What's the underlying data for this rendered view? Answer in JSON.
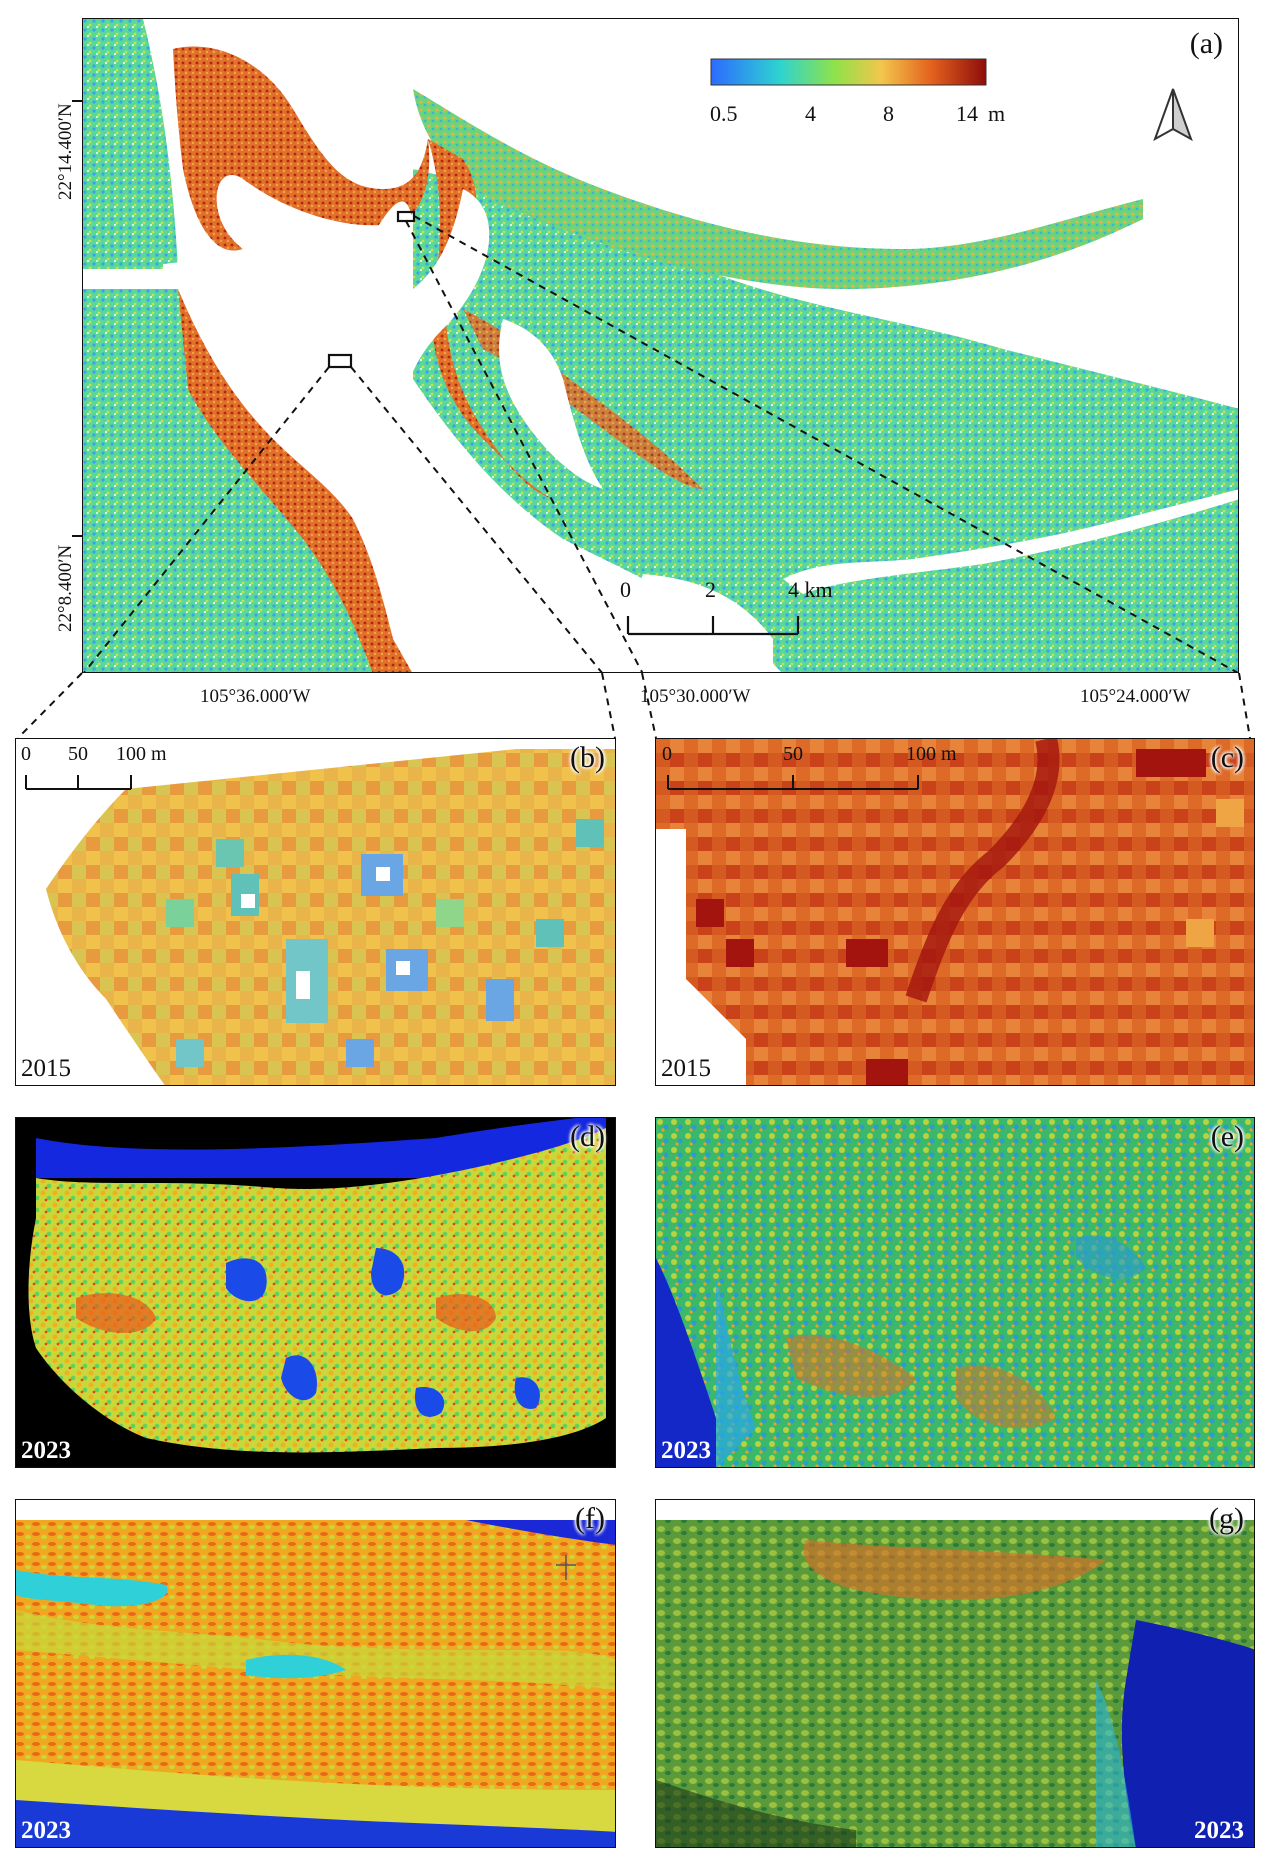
{
  "colorbar": {
    "ticks": [
      "0.5",
      "4",
      "8",
      "14"
    ],
    "unit": "m",
    "colors": [
      "#2c7bff",
      "#2ed3d0",
      "#8fe24a",
      "#f0c24a",
      "#e86a20",
      "#a3140e"
    ]
  },
  "panels": {
    "a": {
      "label": "(a)"
    },
    "b": {
      "label": "(b)",
      "year": "2015"
    },
    "c": {
      "label": "(c)",
      "year": "2015"
    },
    "d": {
      "label": "(d)",
      "year": "2023"
    },
    "e": {
      "label": "(e)",
      "year": "2023"
    },
    "f": {
      "label": "(f)",
      "year": "2023"
    },
    "g": {
      "label": "(g)",
      "year": "2023"
    }
  },
  "lat_labels": [
    "22°14.400′N",
    "22°8.400′N"
  ],
  "lon_labels": [
    "105°36.000′W",
    "105°30.000′W",
    "105°24.000′W"
  ],
  "scalebar_a": {
    "ticks": [
      "0",
      "2",
      "4 km"
    ]
  },
  "scalebar_b": {
    "ticks": [
      "0",
      "50",
      "100 m"
    ]
  },
  "scalebar_c": {
    "ticks": [
      "0",
      "50",
      "100 m"
    ]
  },
  "icons": {
    "north_arrow": "north-arrow-icon"
  }
}
